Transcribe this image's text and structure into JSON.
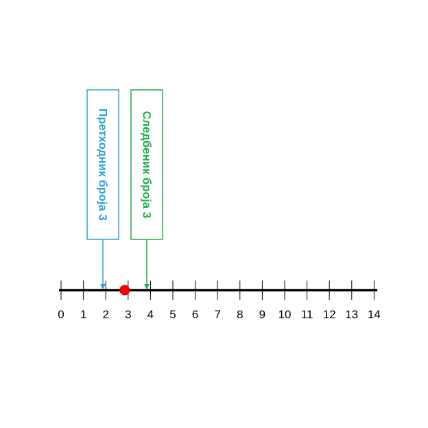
{
  "number_line": {
    "ticks": [
      "0",
      "1",
      "2",
      "3",
      "4",
      "5",
      "6",
      "7",
      "8",
      "9",
      "10",
      "11",
      "12",
      "13",
      "14"
    ],
    "range": [
      0,
      14
    ],
    "line_color": "#000000"
  },
  "marked_point": {
    "value": 3,
    "color": "#ff0000"
  },
  "callouts": [
    {
      "id": "predecessor",
      "text": "Претходник броја 3",
      "points_to": 2,
      "color": "#2aa1d6"
    },
    {
      "id": "successor",
      "text": "Следбеник броја 3",
      "points_to": 4,
      "color": "#22a94f"
    }
  ]
}
